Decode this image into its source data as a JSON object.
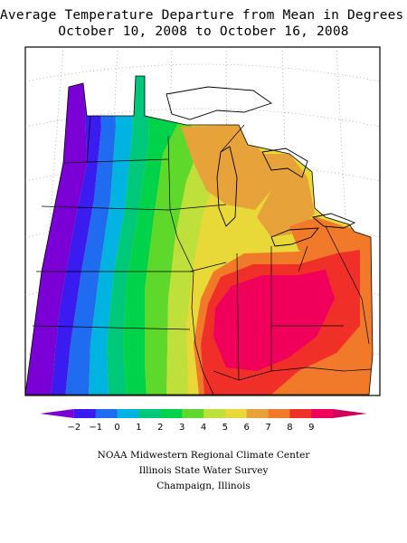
{
  "title": {
    "line1": "Average Temperature Departure from Mean in Degrees F",
    "line2": "October 10, 2008 to October 16, 2008"
  },
  "legend": {
    "ticks": [
      "−2",
      "−1",
      "0",
      "1",
      "2",
      "3",
      "4",
      "5",
      "6",
      "7",
      "8",
      "9"
    ],
    "colors": [
      "#7a00d6",
      "#3a1cf0",
      "#1f6cf0",
      "#00b3e0",
      "#00c87a",
      "#00d24a",
      "#5ed82a",
      "#bfe03a",
      "#e8d838",
      "#e8a23a",
      "#f07a2a",
      "#f03028",
      "#f0005a",
      "#d0005a"
    ]
  },
  "credits": {
    "line1": "NOAA Midwestern Regional Climate Center",
    "line2": "Illinois State Water Survey",
    "line3": "Champaign, Illinois"
  }
}
